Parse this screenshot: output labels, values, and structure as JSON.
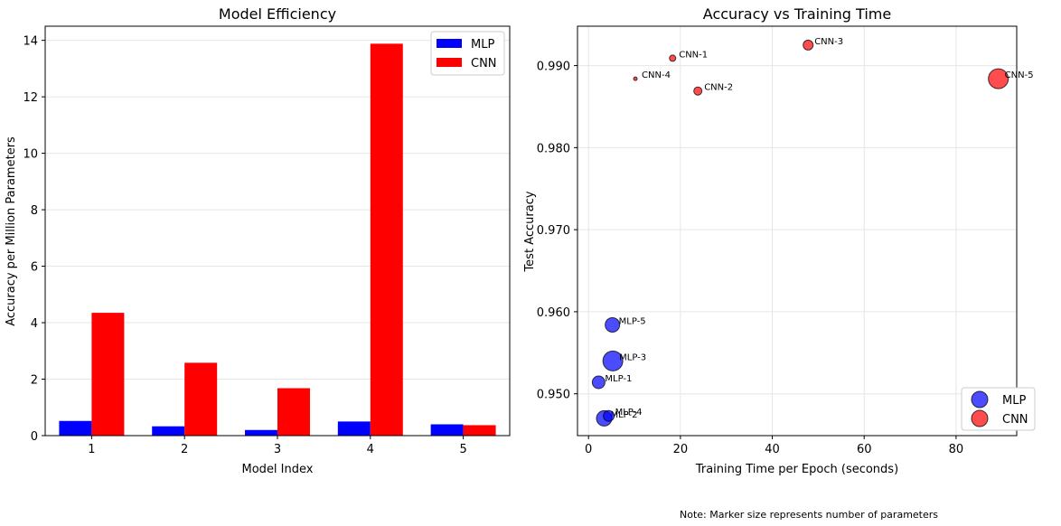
{
  "note": "Note: Marker size represents number of parameters",
  "chart_data": [
    {
      "type": "bar",
      "title": "Model Efficiency",
      "xlabel": "Model Index",
      "ylabel": "Accuracy per Million Parameters",
      "categories": [
        "1",
        "2",
        "3",
        "4",
        "5"
      ],
      "ylim": [
        0,
        14.5
      ],
      "yticks": [
        0,
        2,
        4,
        6,
        8,
        10,
        12,
        14
      ],
      "grid": true,
      "legend": "top-right",
      "series": [
        {
          "name": "MLP",
          "color": "#0000ff",
          "values": [
            0.52,
            0.33,
            0.2,
            0.5,
            0.4
          ]
        },
        {
          "name": "CNN",
          "color": "#ff0000",
          "values": [
            4.35,
            2.58,
            1.68,
            13.88,
            0.37
          ]
        }
      ]
    },
    {
      "type": "scatter",
      "title": "Accuracy vs Training Time",
      "xlabel": "Training Time per Epoch (seconds)",
      "ylabel": "Test Accuracy",
      "xlim": [
        -2.4,
        93.2
      ],
      "ylim": [
        0.9449,
        0.9948
      ],
      "xticks": [
        0,
        20,
        40,
        60,
        80
      ],
      "yticks": [
        0.95,
        0.96,
        0.97,
        0.98,
        0.99
      ],
      "ytick_labels": [
        "0.950",
        "0.960",
        "0.970",
        "0.980",
        "0.990"
      ],
      "grid": true,
      "legend": "bottom-right",
      "size_meaning": "number of parameters",
      "series": [
        {
          "name": "MLP",
          "color": "#0000ff",
          "points": [
            {
              "label": "MLP-1",
              "x": 2.2,
              "y": 0.9514,
              "size": 7
            },
            {
              "label": "MLP-2",
              "x": 3.4,
              "y": 0.947,
              "size": 8.5
            },
            {
              "label": "MLP-3",
              "x": 5.3,
              "y": 0.954,
              "size": 11
            },
            {
              "label": "MLP-4",
              "x": 4.4,
              "y": 0.9473,
              "size": 6
            },
            {
              "label": "MLP-5",
              "x": 5.2,
              "y": 0.9584,
              "size": 8
            }
          ]
        },
        {
          "name": "CNN",
          "color": "#ff0000",
          "points": [
            {
              "label": "CNN-1",
              "x": 18.3,
              "y": 0.9909,
              "size": 3.5
            },
            {
              "label": "CNN-2",
              "x": 23.8,
              "y": 0.9869,
              "size": 4.5
            },
            {
              "label": "CNN-3",
              "x": 47.8,
              "y": 0.9925,
              "size": 5.5
            },
            {
              "label": "CNN-4",
              "x": 10.2,
              "y": 0.9884,
              "size": 2
            },
            {
              "label": "CNN-5",
              "x": 89.2,
              "y": 0.9884,
              "size": 11
            }
          ]
        }
      ]
    }
  ]
}
